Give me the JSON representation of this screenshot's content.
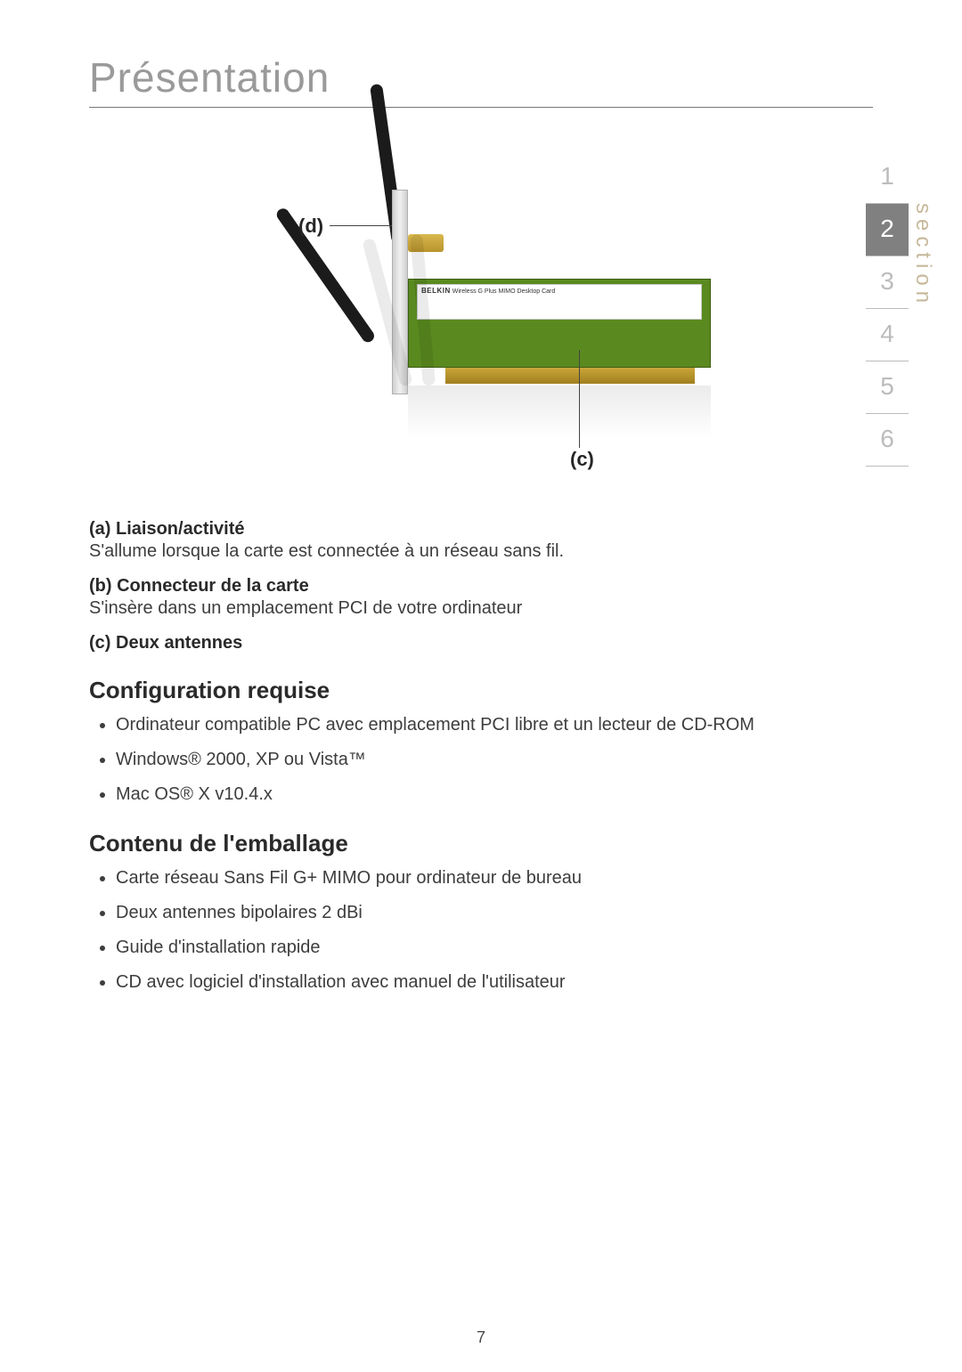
{
  "title": "Présentation",
  "diagram": {
    "brand": "BELKIN",
    "product_label": "Wireless G Plus MIMO Desktop Card",
    "callout_d": "(d)",
    "callout_c": "(c)",
    "pcb_color": "#5a8a1f",
    "connector_color": "#c9a63a"
  },
  "definitions": [
    {
      "title": "(a) Liaison/activité",
      "text": "S'allume lorsque la carte est connectée à un réseau sans fil."
    },
    {
      "title": "(b) Connecteur de la carte",
      "text": "S'insère dans un emplacement PCI de votre ordinateur"
    },
    {
      "title": "(c) Deux antennes",
      "text": ""
    }
  ],
  "config_heading": "Configuration requise",
  "config_items": [
    "Ordinateur compatible PC avec emplacement PCI libre et un lecteur de CD-ROM",
    "Windows® 2000, XP ou Vista™",
    "Mac OS® X v10.4.x"
  ],
  "package_heading": "Contenu de l'emballage",
  "package_items": [
    "Carte réseau Sans Fil G+ MIMO pour ordinateur de bureau",
    "Deux antennes bipolaires 2 dBi",
    "Guide d'installation rapide",
    "CD avec logiciel d'installation avec manuel de l'utilisateur"
  ],
  "sidenav": {
    "label": "section",
    "items": [
      "1",
      "2",
      "3",
      "4",
      "5",
      "6"
    ],
    "active_index": 1,
    "active_bg": "#808080",
    "inactive_color": "#bcbcbc",
    "label_color": "#c7b89b"
  },
  "page_number": "7"
}
